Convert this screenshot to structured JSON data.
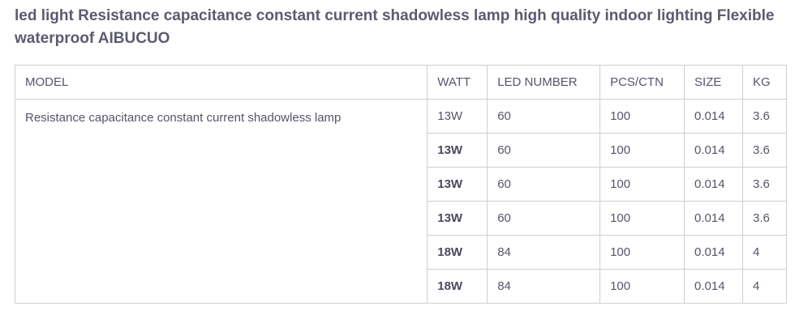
{
  "header": {
    "title": "led light Resistance capacitance constant current shadowless lamp high quality indoor lighting Flexible waterproof AIBUCUO"
  },
  "table": {
    "columns": [
      "MODEL",
      "WATT",
      "LED NUMBER",
      "PCS/CTN",
      "SIZE",
      "KG"
    ],
    "model": "Resistance capacitance constant current shadowless lamp",
    "rows": [
      [
        "13W",
        "60",
        "100",
        "0.014",
        "3.6"
      ],
      [
        "13W",
        "60",
        "100",
        "0.014",
        "3.6"
      ],
      [
        "13W",
        "60",
        "100",
        "0.014",
        "3.6"
      ],
      [
        "13W",
        "60",
        "100",
        "0.014",
        "3.6"
      ],
      [
        "18W",
        "84",
        "100",
        "0.014",
        "4"
      ],
      [
        "18W",
        "84",
        "100",
        "0.014",
        "4"
      ]
    ]
  }
}
